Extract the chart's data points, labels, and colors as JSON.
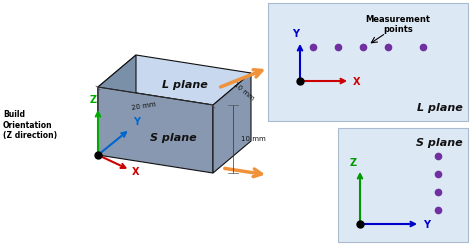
{
  "fig_width": 4.74,
  "fig_height": 2.45,
  "dpi": 100,
  "bg_color": "white",
  "box_top_color": "#c8d8ee",
  "box_left_color": "#7a8fa8",
  "box_front_color": "#8898b0",
  "box_right_color": "#8898b0",
  "box_edge_color": "#111111",
  "panel_bg_color": "#dde8f5",
  "panel_edge_color": "#aabbd0",
  "l_plane_label": "L plane",
  "s_plane_label": "S plane",
  "measurement_label": "Measurement\npoints",
  "build_label": "Build\nOrientation\n(Z direction)",
  "dim_20mm": "20 mm",
  "dim_10mm_top": "10 mm",
  "dim_10mm_side": "10 mm",
  "dot_color": "#7030a0",
  "arrow_orange": "#f0923a",
  "col_red": "#cc0000",
  "col_blue": "#0000cc",
  "col_green": "#00aa00",
  "col_blue2": "#0066cc",
  "col_green2": "#009900"
}
